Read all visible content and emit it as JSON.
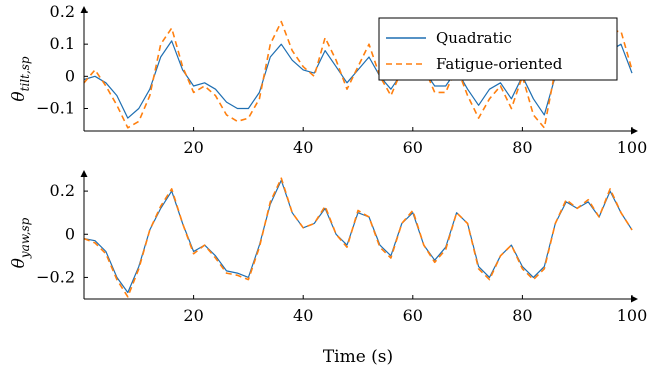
{
  "figure_xlabel": "Time (s)",
  "colors": {
    "quadratic": "#1f6fb2",
    "fatigue": "#ff7f0e"
  },
  "chart_data": [
    {
      "type": "line",
      "title": "",
      "ylabel": "θ_tilt,sp",
      "ylabel_main": "θ",
      "ylabel_sub": "tilt,sp",
      "xlim": [
        0,
        100
      ],
      "ylim": [
        -0.17,
        0.2
      ],
      "xticks": [
        20,
        40,
        60,
        80,
        100
      ],
      "yticks": [
        -0.1,
        0,
        0.1,
        0.2
      ],
      "xtick_labels": [
        "20",
        "40",
        "60",
        "80",
        "100"
      ],
      "ytick_labels": [
        "−0.1",
        "0",
        "0.1",
        "0.2"
      ],
      "grid": false,
      "legend_position": "top-right",
      "x": [
        0,
        2,
        4,
        6,
        8,
        10,
        12,
        14,
        16,
        18,
        20,
        22,
        24,
        26,
        28,
        30,
        32,
        34,
        36,
        38,
        40,
        42,
        44,
        46,
        48,
        50,
        52,
        54,
        56,
        58,
        60,
        62,
        64,
        66,
        68,
        70,
        72,
        74,
        76,
        78,
        80,
        82,
        84,
        86,
        88,
        90,
        92,
        94,
        96,
        98,
        100
      ],
      "series": [
        {
          "name": "Quadratic",
          "style": "solid",
          "values": [
            -0.01,
            0.0,
            -0.02,
            -0.06,
            -0.13,
            -0.1,
            -0.04,
            0.06,
            0.11,
            0.02,
            -0.03,
            -0.02,
            -0.04,
            -0.08,
            -0.1,
            -0.1,
            -0.05,
            0.06,
            0.1,
            0.05,
            0.02,
            0.01,
            0.08,
            0.03,
            -0.02,
            0.02,
            0.06,
            0.0,
            -0.04,
            0.01,
            0.05,
            0.02,
            -0.03,
            -0.03,
            0.02,
            -0.04,
            -0.09,
            -0.04,
            -0.02,
            -0.07,
            0.0,
            -0.07,
            -0.12,
            0.0,
            0.03,
            0.0,
            0.04,
            0.09,
            0.08,
            0.1,
            0.01
          ]
        },
        {
          "name": "Fatigue-oriented",
          "style": "dashed",
          "values": [
            -0.02,
            0.02,
            -0.03,
            -0.09,
            -0.16,
            -0.14,
            -0.06,
            0.1,
            0.15,
            0.03,
            -0.05,
            -0.03,
            -0.06,
            -0.12,
            -0.14,
            -0.13,
            -0.07,
            0.1,
            0.17,
            0.08,
            0.03,
            0.0,
            0.12,
            0.05,
            -0.04,
            0.03,
            0.1,
            0.0,
            -0.06,
            0.02,
            0.08,
            0.03,
            -0.05,
            -0.05,
            0.03,
            -0.06,
            -0.13,
            -0.07,
            -0.03,
            -0.1,
            0.0,
            -0.12,
            -0.16,
            0.02,
            0.05,
            0.0,
            0.06,
            0.13,
            0.14,
            0.14,
            0.02
          ]
        }
      ]
    },
    {
      "type": "line",
      "title": "",
      "ylabel": "θ_yaw,sp",
      "ylabel_main": "θ",
      "ylabel_sub": "yaw,sp",
      "xlim": [
        0,
        100
      ],
      "ylim": [
        -0.3,
        0.27
      ],
      "xticks": [
        20,
        40,
        60,
        80,
        100
      ],
      "yticks": [
        -0.2,
        0,
        0.2
      ],
      "xtick_labels": [
        "20",
        "40",
        "60",
        "80",
        "100"
      ],
      "ytick_labels": [
        "−0.2",
        "0",
        "0.2"
      ],
      "grid": false,
      "x": [
        0,
        2,
        4,
        6,
        8,
        10,
        12,
        14,
        16,
        18,
        20,
        22,
        24,
        26,
        28,
        30,
        32,
        34,
        36,
        38,
        40,
        42,
        44,
        46,
        48,
        50,
        52,
        54,
        56,
        58,
        60,
        62,
        64,
        66,
        68,
        70,
        72,
        74,
        76,
        78,
        80,
        82,
        84,
        86,
        88,
        90,
        92,
        94,
        96,
        98,
        100
      ],
      "series": [
        {
          "name": "Quadratic",
          "style": "solid",
          "values": [
            -0.02,
            -0.03,
            -0.08,
            -0.2,
            -0.27,
            -0.15,
            0.02,
            0.12,
            0.2,
            0.05,
            -0.08,
            -0.05,
            -0.1,
            -0.17,
            -0.18,
            -0.2,
            -0.05,
            0.14,
            0.25,
            0.1,
            0.03,
            0.05,
            0.12,
            0.0,
            -0.05,
            0.1,
            0.08,
            -0.05,
            -0.1,
            0.05,
            0.1,
            -0.05,
            -0.12,
            -0.06,
            0.1,
            0.05,
            -0.15,
            -0.2,
            -0.1,
            -0.05,
            -0.15,
            -0.2,
            -0.15,
            0.05,
            0.15,
            0.12,
            0.15,
            0.08,
            0.2,
            0.1,
            0.02
          ]
        },
        {
          "name": "Fatigue-oriented",
          "style": "dashed",
          "values": [
            -0.02,
            -0.04,
            -0.09,
            -0.21,
            -0.29,
            -0.16,
            0.02,
            0.13,
            0.21,
            0.05,
            -0.09,
            -0.05,
            -0.11,
            -0.18,
            -0.19,
            -0.21,
            -0.06,
            0.15,
            0.26,
            0.1,
            0.03,
            0.05,
            0.13,
            0.0,
            -0.06,
            0.11,
            0.08,
            -0.06,
            -0.11,
            0.05,
            0.11,
            -0.05,
            -0.13,
            -0.07,
            0.1,
            0.05,
            -0.16,
            -0.21,
            -0.1,
            -0.05,
            -0.16,
            -0.21,
            -0.16,
            0.05,
            0.16,
            0.12,
            0.16,
            0.08,
            0.21,
            0.1,
            0.02
          ]
        }
      ]
    }
  ]
}
